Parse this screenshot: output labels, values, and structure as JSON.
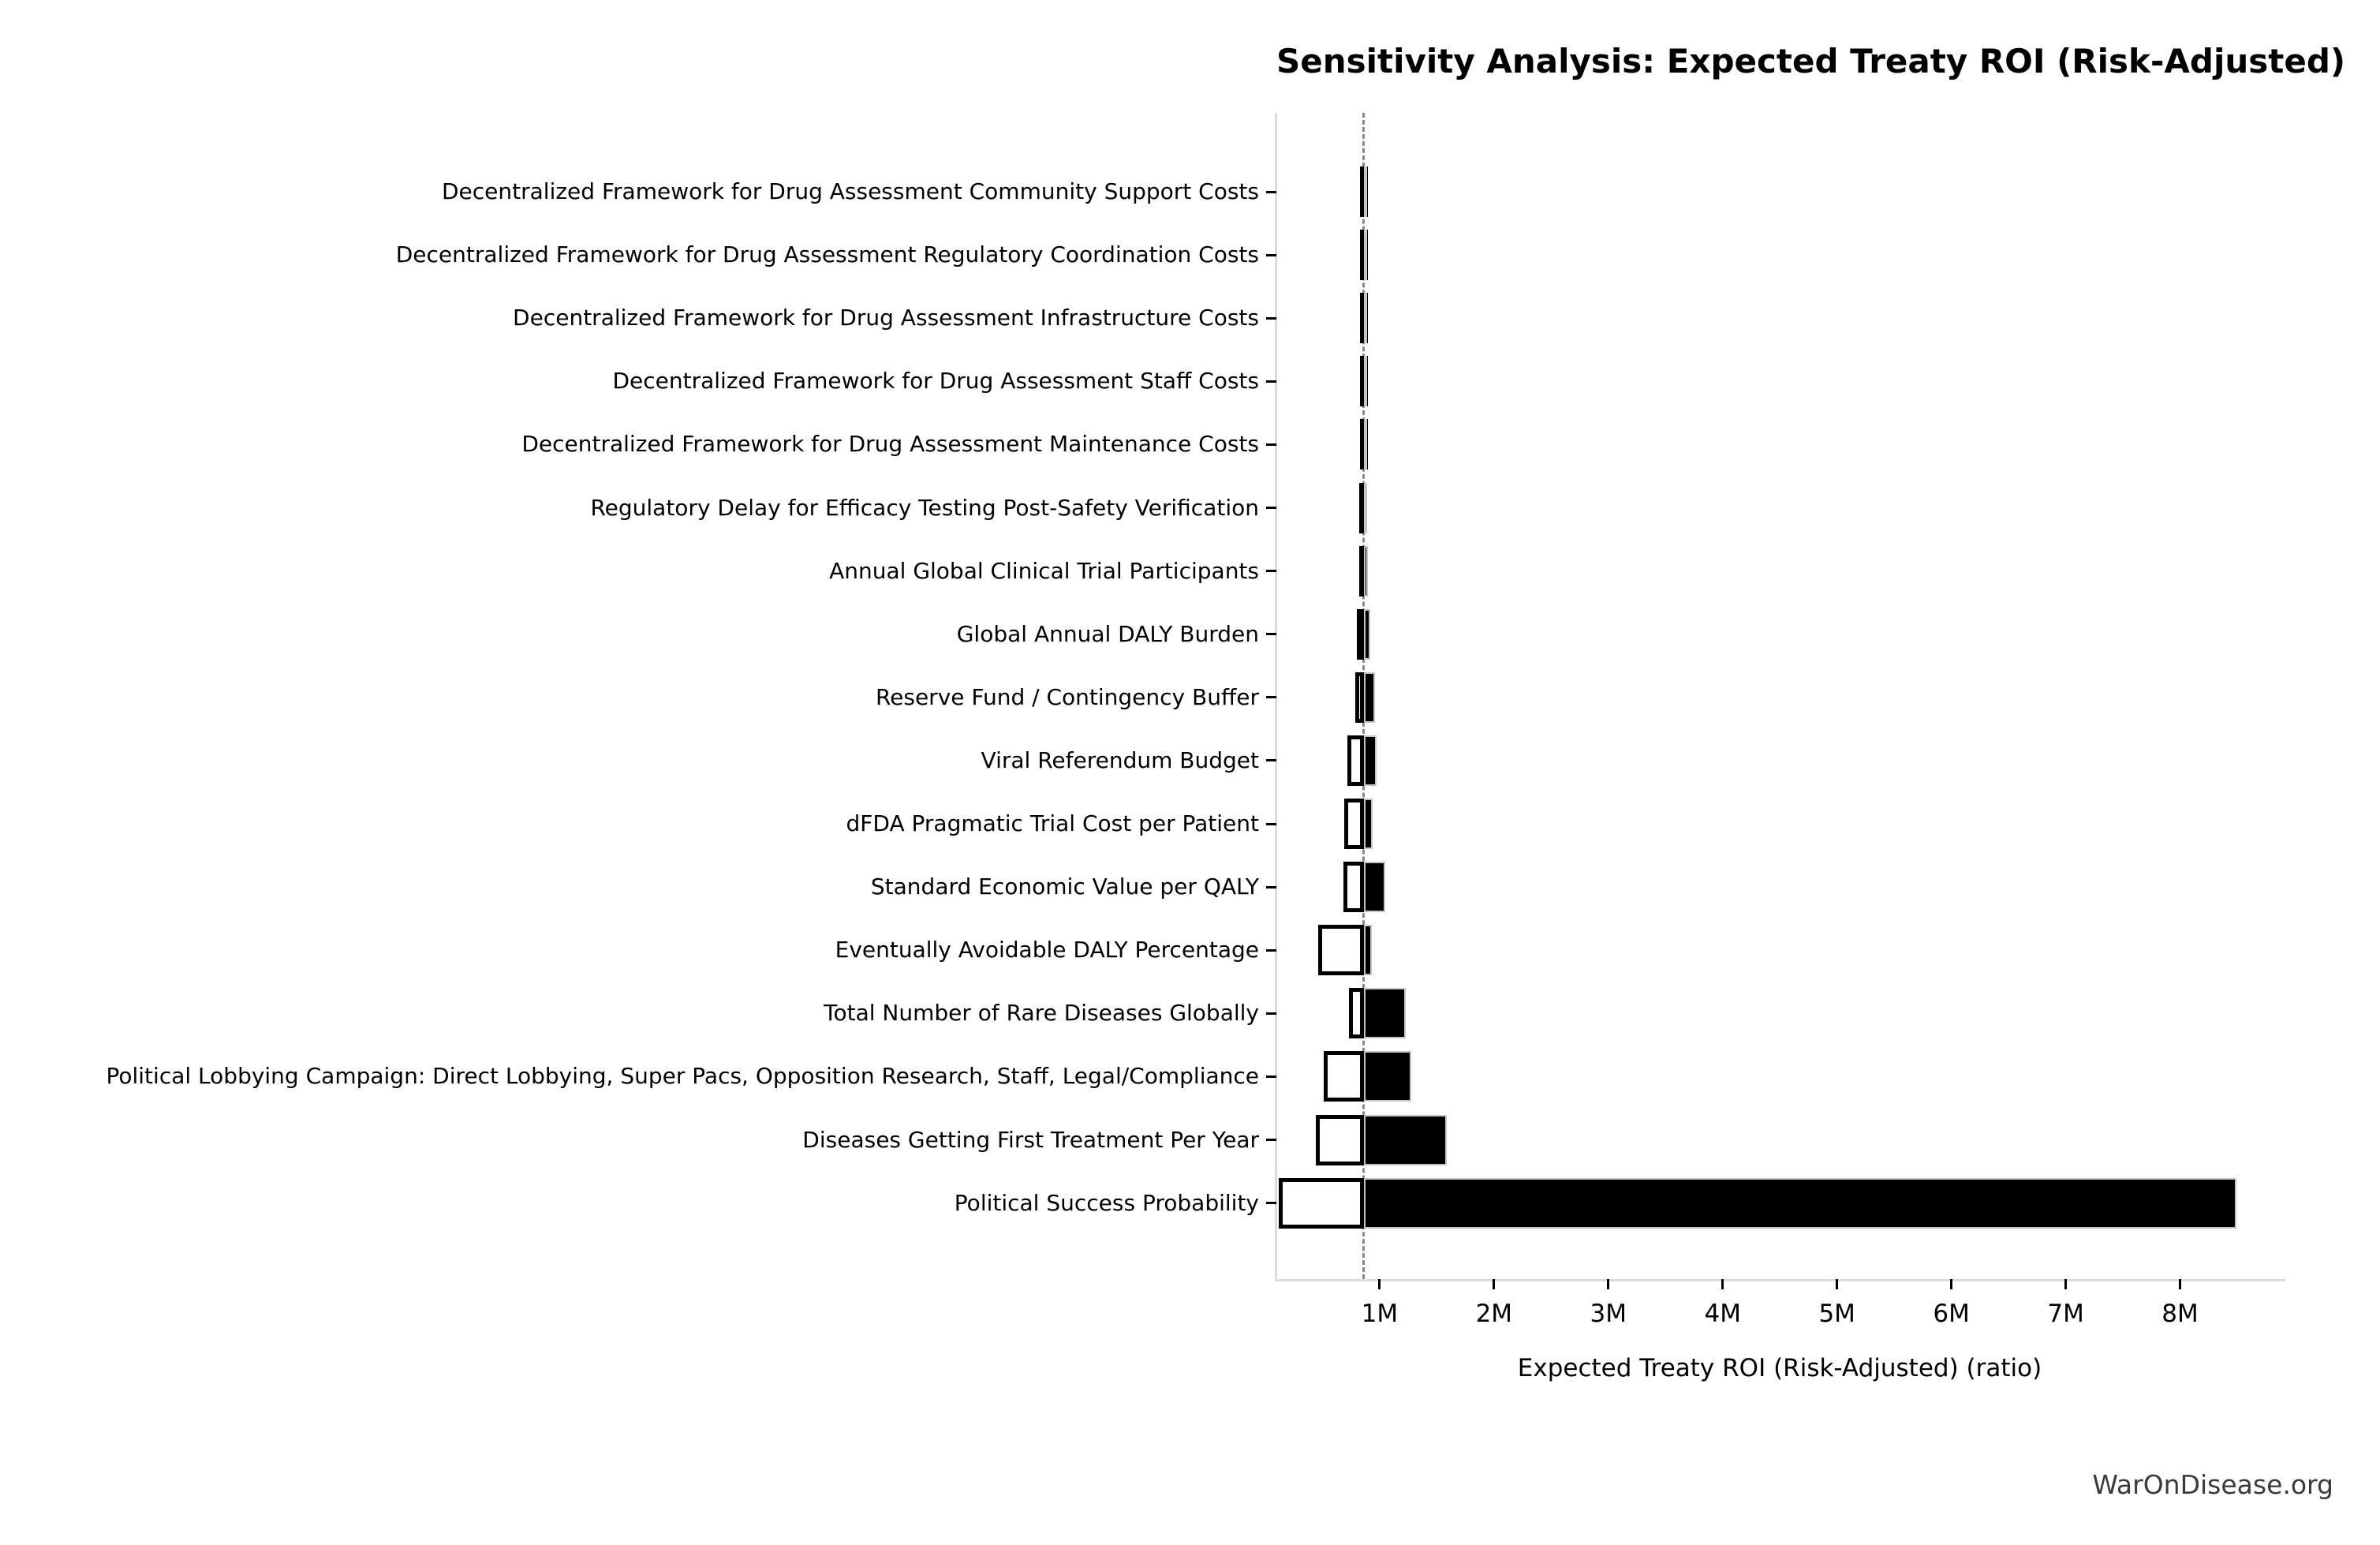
{
  "title": "Sensitivity Analysis: Expected Treaty ROI (Risk-Adjusted)",
  "watermark": "WarOnDisease.org",
  "colors": {
    "high_bar_fill": "#000000",
    "high_bar_edge": "#c4c4c4",
    "low_bar_fill": "#ffffff",
    "low_bar_edge": "#000000",
    "baseline_line": "#8a8a8a",
    "spine": "#dcdcdc",
    "text": "#000000",
    "watermark_text": "#3a3a3a",
    "background": "#ffffff"
  },
  "chart_data": {
    "type": "bar",
    "subtype": "tornado",
    "orientation": "horizontal",
    "title": "Sensitivity Analysis: Expected Treaty ROI (Risk-Adjusted)",
    "xlabel": "Expected Treaty ROI (Risk-Adjusted) (ratio)",
    "ylabel": "",
    "unit": "M (ratio, millions)",
    "xlim": [
      0.097,
      8.9
    ],
    "baseline_value": 0.86,
    "grid": false,
    "legend": "none",
    "x_ticks": [
      {
        "value": 1,
        "label": "1M"
      },
      {
        "value": 2,
        "label": "2M"
      },
      {
        "value": 3,
        "label": "3M"
      },
      {
        "value": 4,
        "label": "4M"
      },
      {
        "value": 5,
        "label": "5M"
      },
      {
        "value": 6,
        "label": "6M"
      },
      {
        "value": 7,
        "label": "7M"
      },
      {
        "value": 8,
        "label": "8M"
      }
    ],
    "rows": [
      {
        "label": "Decentralized Framework for Drug Assessment Community Support Costs",
        "low": 0.83,
        "high": 0.88
      },
      {
        "label": "Decentralized Framework for Drug Assessment Regulatory Coordination Costs",
        "low": 0.83,
        "high": 0.88
      },
      {
        "label": "Decentralized Framework for Drug Assessment Infrastructure Costs",
        "low": 0.83,
        "high": 0.88
      },
      {
        "label": "Decentralized Framework for Drug Assessment Staff Costs",
        "low": 0.83,
        "high": 0.88
      },
      {
        "label": "Decentralized Framework for Drug Assessment Maintenance Costs",
        "low": 0.83,
        "high": 0.89
      },
      {
        "label": "Regulatory Delay for Efficacy Testing Post-Safety Verification",
        "low": 0.82,
        "high": 0.89
      },
      {
        "label": "Annual Global Clinical Trial Participants",
        "low": 0.82,
        "high": 0.9
      },
      {
        "label": "Global Annual DALY Burden",
        "low": 0.8,
        "high": 0.92
      },
      {
        "label": "Reserve Fund / Contingency Buffer",
        "low": 0.79,
        "high": 0.96
      },
      {
        "label": "Viral Referendum Budget",
        "low": 0.72,
        "high": 0.97
      },
      {
        "label": "dFDA Pragmatic Trial Cost per Patient",
        "low": 0.69,
        "high": 0.94
      },
      {
        "label": "Standard Economic Value per QALY",
        "low": 0.68,
        "high": 1.05
      },
      {
        "label": "Eventually Avoidable DALY Percentage",
        "low": 0.46,
        "high": 0.93
      },
      {
        "label": "Total Number of Rare Diseases Globally",
        "low": 0.73,
        "high": 1.23
      },
      {
        "label": "Political Lobbying Campaign: Direct Lobbying, Super Pacs, Opposition Research, Staff, Legal/Compliance",
        "low": 0.51,
        "high": 1.28
      },
      {
        "label": "Diseases Getting First Treatment Per Year",
        "low": 0.44,
        "high": 1.59
      },
      {
        "label": "Political Success Probability",
        "low": 0.12,
        "high": 8.49
      }
    ]
  }
}
